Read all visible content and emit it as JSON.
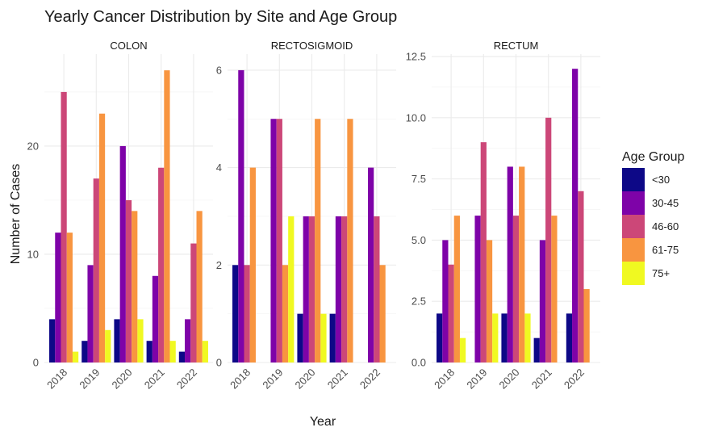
{
  "chart_data": {
    "type": "bar",
    "title": "Yearly Cancer Distribution by Site and Age Group",
    "xlabel": "Year",
    "ylabel": "Number of Cases",
    "grid": true,
    "legend": {
      "title": "Age Group",
      "placement": "right",
      "entries": [
        {
          "name": "<30",
          "color": "#0d0887"
        },
        {
          "name": "30-45",
          "color": "#7e03a8"
        },
        {
          "name": "46-60",
          "color": "#cc4778"
        },
        {
          "name": "61-75",
          "color": "#f89540"
        },
        {
          "name": "75+",
          "color": "#f0f921"
        }
      ]
    },
    "categories": [
      "2018",
      "2019",
      "2020",
      "2021",
      "2022"
    ],
    "panels": [
      {
        "title": "COLON",
        "ylim": [
          0,
          28.5
        ],
        "yticks": [
          0,
          10,
          20
        ],
        "ytick_labels": [
          "0",
          "10",
          "20"
        ],
        "series": [
          {
            "name": "<30",
            "values": [
              4,
              2,
              4,
              2,
              1
            ]
          },
          {
            "name": "30-45",
            "values": [
              12,
              9,
              20,
              8,
              4
            ]
          },
          {
            "name": "46-60",
            "values": [
              25,
              17,
              15,
              18,
              11
            ]
          },
          {
            "name": "61-75",
            "values": [
              12,
              23,
              14,
              27,
              14
            ]
          },
          {
            "name": "75+",
            "values": [
              1,
              3,
              4,
              2,
              2
            ]
          }
        ]
      },
      {
        "title": "RECTOSIGMOID",
        "ylim": [
          0,
          6.33
        ],
        "yticks": [
          0,
          2,
          4,
          6
        ],
        "ytick_labels": [
          "0",
          "2",
          "4",
          "6"
        ],
        "series": [
          {
            "name": "<30",
            "values": [
              2,
              null,
              1,
              1,
              null
            ]
          },
          {
            "name": "30-45",
            "values": [
              6,
              5,
              3,
              3,
              4
            ]
          },
          {
            "name": "46-60",
            "values": [
              2,
              5,
              3,
              3,
              3
            ]
          },
          {
            "name": "61-75",
            "values": [
              4,
              2,
              5,
              5,
              2
            ]
          },
          {
            "name": "75+",
            "values": [
              null,
              3,
              1,
              null,
              null
            ]
          }
        ]
      },
      {
        "title": "RECTUM",
        "ylim": [
          0,
          12.6
        ],
        "yticks": [
          0,
          2.5,
          5,
          7.5,
          10,
          12.5
        ],
        "ytick_labels": [
          "0.0",
          "2.5",
          "5.0",
          "7.5",
          "10.0",
          "12.5"
        ],
        "series": [
          {
            "name": "<30",
            "values": [
              2,
              null,
              2,
              1,
              2
            ]
          },
          {
            "name": "30-45",
            "values": [
              5,
              6,
              8,
              5,
              12
            ]
          },
          {
            "name": "46-60",
            "values": [
              4,
              9,
              6,
              10,
              7
            ]
          },
          {
            "name": "61-75",
            "values": [
              6,
              5,
              8,
              6,
              3
            ]
          },
          {
            "name": "75+",
            "values": [
              1,
              2,
              2,
              null,
              null
            ]
          }
        ]
      }
    ]
  }
}
